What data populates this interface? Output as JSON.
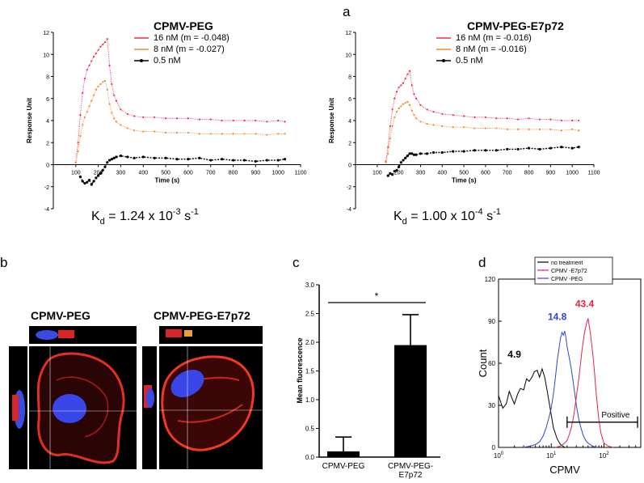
{
  "colors": {
    "red": "#e8304a",
    "orange": "#f08a2a",
    "black": "#000000",
    "blue": "#2f45c8",
    "pink": "#e62346"
  },
  "panel_letters": [
    "a",
    "b",
    "c",
    "d"
  ],
  "chart_data": [
    {
      "type": "scatter",
      "title": "CPMV-PEG",
      "xlabel": "Time (s)",
      "ylabel": "Response Unit",
      "xlim": [
        0,
        1100
      ],
      "ylim": [
        -4,
        12
      ],
      "xticks": [
        100,
        200,
        300,
        400,
        500,
        600,
        700,
        800,
        900,
        1000,
        1100
      ],
      "yticks": [
        -4,
        -2,
        0,
        2,
        4,
        6,
        8,
        10,
        12
      ],
      "legend": [
        "16 nM (m = -0.048)",
        "8 nM (m = -0.027)",
        "0.5 nM"
      ],
      "kd": {
        "base": "K",
        "sub": "d",
        "mid": " = 1.24 x 10",
        "exp": "-3",
        "tail": " s",
        "tail_exp": "-1"
      },
      "series": [
        {
          "name": "16 nM (m = -0.048)",
          "color": "#e8304a",
          "x": [
            100,
            110,
            120,
            130,
            140,
            150,
            160,
            170,
            180,
            190,
            200,
            210,
            220,
            230,
            240,
            250,
            260,
            270,
            280,
            300,
            330,
            360,
            400,
            450,
            500,
            550,
            600,
            650,
            700,
            750,
            800,
            850,
            900,
            950,
            1000,
            1030
          ],
          "y": [
            0.2,
            2.0,
            4.5,
            6.5,
            7.8,
            8.6,
            9.0,
            9.4,
            9.8,
            10.1,
            10.4,
            10.7,
            10.9,
            11.1,
            11.4,
            9.0,
            7.3,
            6.3,
            5.8,
            5.0,
            4.6,
            4.4,
            4.3,
            4.3,
            4.2,
            4.2,
            4.2,
            4.1,
            4.1,
            4.0,
            4.0,
            4.0,
            4.0,
            3.9,
            4.0,
            3.9
          ]
        },
        {
          "name": "8 nM (m = -0.027)",
          "color": "#f08a2a",
          "x": [
            100,
            110,
            120,
            130,
            140,
            150,
            160,
            170,
            180,
            190,
            200,
            210,
            220,
            230,
            240,
            250,
            260,
            270,
            280,
            300,
            330,
            360,
            400,
            450,
            500,
            550,
            600,
            650,
            700,
            750,
            800,
            850,
            900,
            950,
            1000,
            1030
          ],
          "y": [
            0.2,
            1.2,
            2.6,
            3.6,
            4.3,
            4.8,
            5.3,
            5.8,
            6.3,
            6.8,
            7.1,
            7.3,
            7.5,
            7.6,
            6.8,
            5.5,
            4.7,
            4.2,
            3.9,
            3.6,
            3.3,
            3.1,
            3.0,
            3.0,
            2.9,
            2.9,
            2.9,
            2.8,
            2.8,
            2.8,
            2.8,
            2.8,
            2.8,
            2.7,
            2.8,
            2.8
          ]
        },
        {
          "name": "0.5 nM",
          "color": "#000000",
          "x": [
            120,
            130,
            140,
            150,
            160,
            170,
            180,
            190,
            200,
            210,
            220,
            230,
            240,
            250,
            260,
            270,
            280,
            300,
            330,
            360,
            400,
            450,
            500,
            550,
            600,
            650,
            700,
            750,
            800,
            850,
            900,
            950,
            1000,
            1030
          ],
          "y": [
            -1.1,
            -1.5,
            -1.7,
            -1.6,
            -1.4,
            -1.8,
            -1.5,
            -1.2,
            -1.0,
            -0.8,
            -0.5,
            -0.2,
            0.2,
            0.4,
            0.5,
            0.6,
            0.7,
            0.8,
            0.7,
            0.6,
            0.7,
            0.6,
            0.6,
            0.5,
            0.5,
            0.6,
            0.4,
            0.5,
            0.4,
            0.4,
            0.3,
            0.4,
            0.4,
            0.5
          ]
        }
      ]
    },
    {
      "type": "scatter",
      "title": "CPMV-PEG-E7p72",
      "xlabel": "Time (s)",
      "ylabel": "Response Unit",
      "xlim": [
        0,
        1100
      ],
      "ylim": [
        -4,
        12
      ],
      "xticks": [
        100,
        200,
        300,
        400,
        500,
        600,
        700,
        800,
        900,
        1000,
        1100
      ],
      "yticks": [
        -4,
        -2,
        0,
        2,
        4,
        6,
        8,
        10,
        12
      ],
      "legend": [
        "16 nM (m = -0.016)",
        "8 nM (m = -0.016)",
        "0.5 nM"
      ],
      "kd": {
        "base": "K",
        "sub": "d",
        "mid": " = 1.00 x 10",
        "exp": "-4",
        "tail": " s",
        "tail_exp": "-1"
      },
      "series": [
        {
          "name": "16 nM (m = -0.016)",
          "color": "#e8304a",
          "x": [
            140,
            150,
            160,
            170,
            180,
            190,
            200,
            210,
            220,
            230,
            240,
            250,
            260,
            270,
            280,
            300,
            330,
            360,
            400,
            450,
            500,
            550,
            600,
            650,
            700,
            750,
            800,
            850,
            900,
            950,
            1000,
            1030
          ],
          "y": [
            0.3,
            1.6,
            3.5,
            5.0,
            6.0,
            6.6,
            7.0,
            7.2,
            7.4,
            7.8,
            8.2,
            8.5,
            7.2,
            6.4,
            6.0,
            5.4,
            5.0,
            4.8,
            4.6,
            4.5,
            4.4,
            4.3,
            4.3,
            4.2,
            4.2,
            4.1,
            4.2,
            4.1,
            4.1,
            4.0,
            4.0,
            4.0
          ]
        },
        {
          "name": "8 nM (m = -0.016)",
          "color": "#f08a2a",
          "x": [
            140,
            150,
            160,
            170,
            180,
            190,
            200,
            210,
            220,
            230,
            240,
            250,
            260,
            270,
            280,
            300,
            330,
            360,
            400,
            450,
            500,
            550,
            600,
            650,
            700,
            750,
            800,
            850,
            900,
            950,
            1000,
            1030
          ],
          "y": [
            0.2,
            1.0,
            2.4,
            3.5,
            4.3,
            4.8,
            5.1,
            5.3,
            5.5,
            5.6,
            5.7,
            5.4,
            4.9,
            4.5,
            4.2,
            3.9,
            3.7,
            3.6,
            3.5,
            3.4,
            3.4,
            3.3,
            3.3,
            3.3,
            3.2,
            3.2,
            3.2,
            3.2,
            3.2,
            3.1,
            3.2,
            3.1
          ]
        },
        {
          "name": "0.5 nM",
          "color": "#000000",
          "x": [
            150,
            160,
            170,
            180,
            190,
            200,
            210,
            220,
            230,
            240,
            250,
            260,
            270,
            280,
            300,
            330,
            360,
            400,
            450,
            500,
            550,
            600,
            650,
            700,
            750,
            800,
            850,
            900,
            950,
            1000,
            1030
          ],
          "y": [
            -1.0,
            -0.8,
            -0.9,
            -0.6,
            -0.5,
            -0.2,
            0.2,
            0.4,
            0.6,
            0.8,
            1.0,
            1.0,
            0.9,
            0.9,
            1.0,
            1.0,
            1.1,
            1.1,
            1.2,
            1.2,
            1.3,
            1.3,
            1.3,
            1.4,
            1.4,
            1.5,
            1.4,
            1.5,
            1.6,
            1.5,
            1.6
          ]
        }
      ]
    },
    {
      "type": "bar",
      "ylabel": "Mean fluorescence",
      "categories": [
        "CPMV-PEG",
        "CPMV-PEG-\nE7p72"
      ],
      "values": [
        0.1,
        1.95
      ],
      "errors": [
        0.25,
        0.53
      ],
      "ylim": [
        0,
        3.0
      ],
      "yticks": [
        0.0,
        0.5,
        1.0,
        1.5,
        2.0,
        2.5,
        3.0
      ],
      "significance": "*"
    },
    {
      "type": "line",
      "xlabel": "CPMV",
      "ylabel": "Count",
      "xscale": "log",
      "xlim": [
        1,
        500
      ],
      "ylim": [
        0,
        120
      ],
      "yticks": [
        0,
        30,
        60,
        90,
        120
      ],
      "xtick_labels": [
        {
          "base": "10",
          "exp": "0"
        },
        {
          "base": "10",
          "exp": "1"
        },
        {
          "base": "10",
          "exp": "2"
        }
      ],
      "legend": [
        "no treatment",
        "CPMV -E7p72",
        "CPMV -PEG"
      ],
      "gate_label": "Positive",
      "gate_range": [
        20,
        500
      ],
      "gate_level": 18,
      "annotations": [
        {
          "text": "4.9",
          "x": 2.0,
          "y": 64,
          "color": "#000000"
        },
        {
          "text": "14.8",
          "x": 13.0,
          "y": 91,
          "color": "#2f45c8"
        },
        {
          "text": "43.4",
          "x": 43.0,
          "y": 100,
          "color": "#e62346"
        }
      ],
      "series": [
        {
          "name": "no treatment",
          "color": "#000000",
          "x": [
            1.0,
            1.2,
            1.4,
            1.6,
            1.8,
            2.0,
            2.3,
            2.6,
            3.0,
            3.4,
            3.8,
            4.3,
            4.8,
            5.4,
            6.0,
            6.7,
            7.5,
            8.4,
            9.5,
            11,
            13,
            15,
            18
          ],
          "y": [
            37,
            28,
            31,
            40,
            35,
            31,
            38,
            42,
            41,
            49,
            47,
            50,
            54,
            55,
            50,
            56,
            50,
            40,
            28,
            14,
            6,
            2,
            0
          ]
        },
        {
          "name": "CPMV -PEG",
          "color": "#2f45c8",
          "x": [
            3.0,
            4.0,
            5.0,
            6.0,
            7.0,
            8.0,
            9.0,
            10,
            11,
            12,
            13,
            14,
            15,
            16,
            17,
            18,
            19,
            20,
            22,
            24,
            26,
            28,
            30,
            33,
            36,
            40,
            45,
            50,
            60,
            75
          ],
          "y": [
            0,
            1,
            2,
            4,
            8,
            14,
            21,
            28,
            38,
            50,
            62,
            70,
            78,
            82,
            80,
            83,
            78,
            72,
            64,
            56,
            47,
            38,
            30,
            21,
            15,
            9,
            5,
            3,
            1,
            0
          ]
        },
        {
          "name": "CPMV -E7p72",
          "color": "#e62346",
          "x": [
            12,
            15,
            18,
            20,
            22,
            24,
            26,
            28,
            30,
            32,
            34,
            36,
            38,
            40,
            42,
            44,
            46,
            48,
            50,
            52,
            55,
            58,
            62,
            66,
            70,
            75,
            80,
            88,
            100,
            120,
            150
          ],
          "y": [
            0,
            1,
            3,
            5,
            9,
            14,
            20,
            28,
            36,
            44,
            52,
            60,
            68,
            74,
            80,
            84,
            87,
            90,
            92,
            88,
            82,
            75,
            65,
            54,
            42,
            30,
            20,
            10,
            3,
            1,
            0
          ]
        }
      ]
    }
  ]
}
